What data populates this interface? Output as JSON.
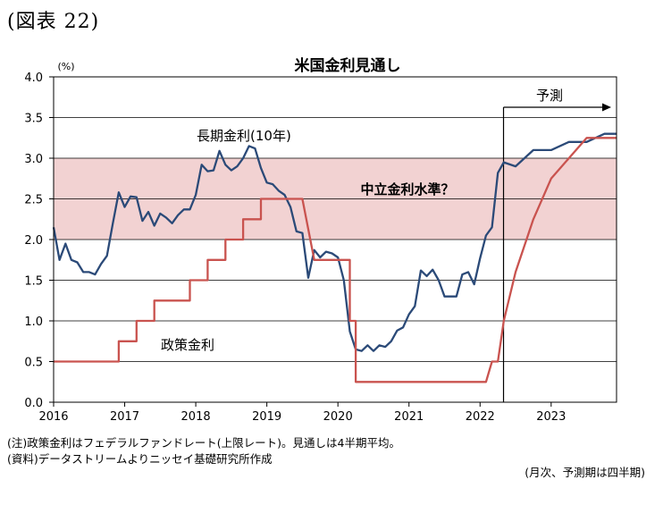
{
  "figure_label": "(図表 22)",
  "notes": {
    "note1": "(注)政策金利はフェデラルファンドレート(上限レート)。見通しは4半期平均。",
    "note2": "(資料)データストリームよりニッセイ基礎研究所作成",
    "freq": "(月次、予測期は四半期)"
  },
  "chart_data": {
    "type": "line",
    "title": "米国金利見通し",
    "unit_label": "(%)",
    "ylim": [
      0.0,
      4.0
    ],
    "yticks": [
      "0.0",
      "0.5",
      "1.0",
      "1.5",
      "2.0",
      "2.5",
      "3.0",
      "3.5",
      "4.0"
    ],
    "xlim": [
      2016.0,
      2023.92
    ],
    "xticks": [
      "2016",
      "2017",
      "2018",
      "2019",
      "2020",
      "2021",
      "2022",
      "2023"
    ],
    "grid": true,
    "band": {
      "label": "中立金利水準？",
      "from": 2.0,
      "to": 3.0,
      "color": "#f2d2d2"
    },
    "forecast": {
      "label": "予測",
      "start": 2022.33
    },
    "colors": {
      "long_rate": "#2b4a78",
      "policy_rate": "#c9534f"
    },
    "series": [
      {
        "name": "長期金利(10年)",
        "x": [
          2016.0,
          2016.083,
          2016.167,
          2016.25,
          2016.333,
          2016.417,
          2016.5,
          2016.583,
          2016.667,
          2016.75,
          2016.833,
          2016.917,
          2017.0,
          2017.083,
          2017.167,
          2017.25,
          2017.333,
          2017.417,
          2017.5,
          2017.583,
          2017.667,
          2017.75,
          2017.833,
          2017.917,
          2018.0,
          2018.083,
          2018.167,
          2018.25,
          2018.333,
          2018.417,
          2018.5,
          2018.583,
          2018.667,
          2018.75,
          2018.833,
          2018.917,
          2019.0,
          2019.083,
          2019.167,
          2019.25,
          2019.333,
          2019.417,
          2019.5,
          2019.583,
          2019.667,
          2019.75,
          2019.833,
          2019.917,
          2020.0,
          2020.083,
          2020.167,
          2020.25,
          2020.333,
          2020.417,
          2020.5,
          2020.583,
          2020.667,
          2020.75,
          2020.833,
          2020.917,
          2021.0,
          2021.083,
          2021.167,
          2021.25,
          2021.333,
          2021.417,
          2021.5,
          2021.583,
          2021.667,
          2021.75,
          2021.833,
          2021.917,
          2022.0,
          2022.083,
          2022.167,
          2022.25,
          2022.333,
          2022.5,
          2022.75,
          2023.0,
          2023.25,
          2023.5,
          2023.75,
          2023.917
        ],
        "values": [
          2.15,
          1.75,
          1.95,
          1.75,
          1.72,
          1.6,
          1.6,
          1.57,
          1.7,
          1.8,
          2.2,
          2.58,
          2.4,
          2.53,
          2.52,
          2.23,
          2.34,
          2.17,
          2.32,
          2.27,
          2.2,
          2.3,
          2.37,
          2.37,
          2.55,
          2.92,
          2.84,
          2.85,
          3.09,
          2.92,
          2.85,
          2.9,
          3.0,
          3.15,
          3.12,
          2.88,
          2.7,
          2.68,
          2.6,
          2.55,
          2.4,
          2.1,
          2.08,
          1.53,
          1.87,
          1.78,
          1.85,
          1.83,
          1.78,
          1.5,
          0.87,
          0.65,
          0.63,
          0.7,
          0.63,
          0.7,
          0.68,
          0.75,
          0.88,
          0.92,
          1.08,
          1.18,
          1.62,
          1.55,
          1.63,
          1.5,
          1.3,
          1.3,
          1.3,
          1.57,
          1.6,
          1.45,
          1.77,
          2.05,
          2.15,
          2.82,
          2.95,
          2.9,
          3.1,
          3.1,
          3.2,
          3.2,
          3.3,
          3.3
        ],
        "label": "長期金利(10年)"
      },
      {
        "name": "政策金利",
        "x": [
          2016.0,
          2016.917,
          2016.917,
          2017.167,
          2017.167,
          2017.417,
          2017.417,
          2017.917,
          2017.917,
          2018.167,
          2018.167,
          2018.417,
          2018.417,
          2018.667,
          2018.667,
          2018.917,
          2018.917,
          2019.5,
          2019.667,
          2020.167,
          2020.167,
          2020.25,
          2020.25,
          2022.083,
          2022.167,
          2022.25,
          2022.333,
          2022.5,
          2022.75,
          2023.0,
          2023.25,
          2023.5,
          2023.75,
          2023.917
        ],
        "values": [
          0.5,
          0.5,
          0.75,
          0.75,
          1.0,
          1.0,
          1.25,
          1.25,
          1.5,
          1.5,
          1.75,
          1.75,
          2.0,
          2.0,
          2.25,
          2.25,
          2.5,
          2.5,
          1.75,
          1.75,
          1.0,
          1.0,
          0.25,
          0.25,
          0.5,
          0.5,
          1.0,
          1.6,
          2.25,
          2.75,
          3.0,
          3.25,
          3.25,
          3.25
        ],
        "label": "政策金利"
      }
    ]
  }
}
